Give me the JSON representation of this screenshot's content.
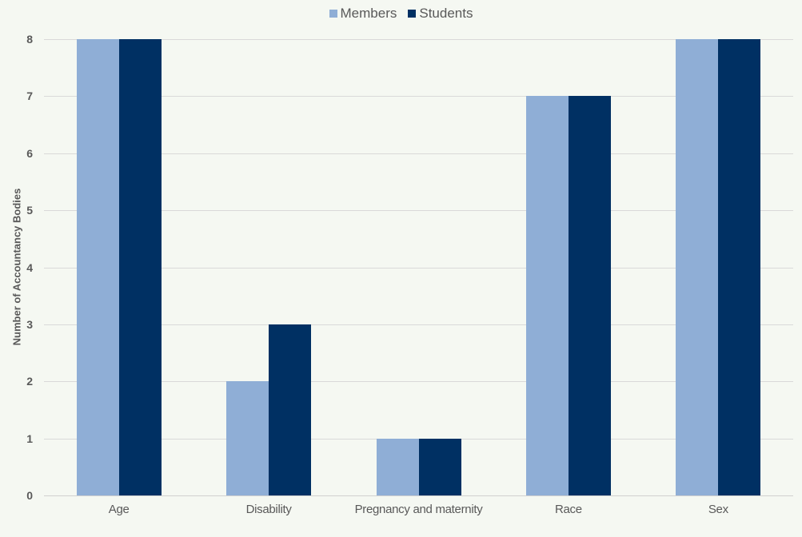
{
  "chart_data": {
    "type": "bar",
    "title": "",
    "xlabel": "",
    "ylabel": "Number of Accountancy Bodies",
    "categories": [
      "Age",
      "Disability",
      "Pregnancy and maternity",
      "Race",
      "Sex"
    ],
    "series": [
      {
        "name": "Members",
        "color": "#8faed6",
        "values": [
          8,
          2,
          1,
          7,
          8
        ]
      },
      {
        "name": "Students",
        "color": "#003063",
        "values": [
          8,
          3,
          1,
          7,
          8
        ]
      }
    ],
    "ylim": [
      0,
      8
    ],
    "yticks": [
      0,
      1,
      2,
      3,
      4,
      5,
      6,
      7,
      8
    ],
    "grid": true,
    "legend_position": "top"
  },
  "legend": {
    "items": [
      {
        "label": "Members",
        "color": "#8faed6"
      },
      {
        "label": "Students",
        "color": "#003063"
      }
    ]
  },
  "axis": {
    "ylabel": "Number of Accountancy Bodies"
  }
}
